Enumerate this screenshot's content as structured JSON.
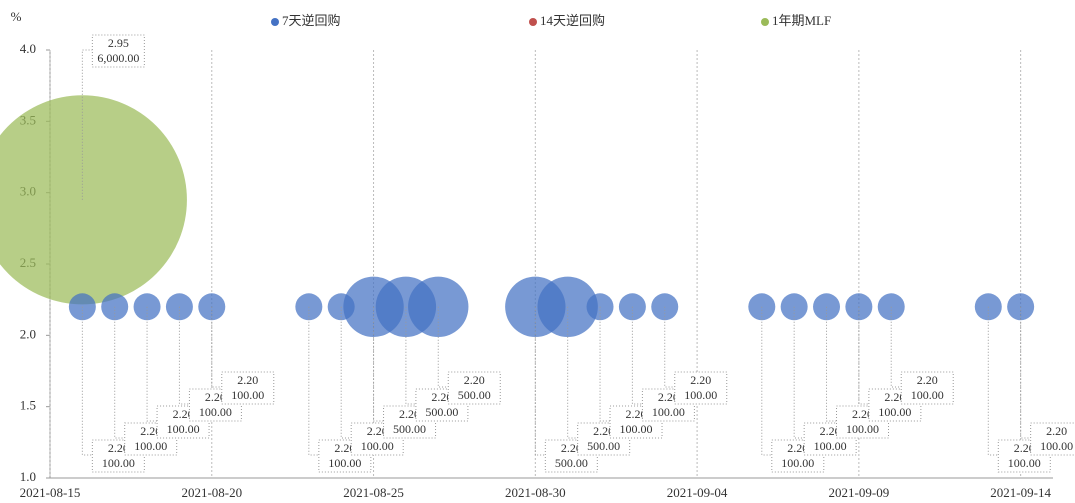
{
  "chart_data": {
    "type": "bubble",
    "y_label": "%",
    "xlim": [
      "2021-08-15",
      "2021-09-15"
    ],
    "xticks": [
      "2021-08-15",
      "2021-08-20",
      "2021-08-25",
      "2021-08-30",
      "2021-09-04",
      "2021-09-09",
      "2021-09-14"
    ],
    "ylim": [
      1,
      4
    ],
    "yticks": [
      {
        "value": 1,
        "label": "1.0"
      },
      {
        "value": 1.5,
        "label": "1.5"
      },
      {
        "value": 2,
        "label": "2.0"
      },
      {
        "value": 2.5,
        "label": "2.5"
      },
      {
        "value": 3,
        "label": "3.0"
      },
      {
        "value": 3.5,
        "label": "3.5"
      },
      {
        "value": 4,
        "label": "4.0"
      }
    ],
    "x_grid": true,
    "series": [
      {
        "name": "7天逆回购",
        "color": "#4472c4",
        "x": [
          "2021-08-16",
          "2021-08-17",
          "2021-08-18",
          "2021-08-19",
          "2021-08-20",
          "2021-08-23",
          "2021-08-24",
          "2021-08-25",
          "2021-08-26",
          "2021-08-27",
          "2021-08-30",
          "2021-08-31",
          "2021-09-01",
          "2021-09-02",
          "2021-09-03",
          "2021-09-06",
          "2021-09-07",
          "2021-09-08",
          "2021-09-09",
          "2021-09-10",
          "2021-09-13",
          "2021-09-14"
        ],
        "values": [
          2.2,
          2.2,
          2.2,
          2.2,
          2.2,
          2.2,
          2.2,
          2.2,
          2.2,
          2.2,
          2.2,
          2.2,
          2.2,
          2.2,
          2.2,
          2.2,
          2.2,
          2.2,
          2.2,
          2.2,
          2.2,
          2.2
        ],
        "value_labels": [
          "2.20",
          "2.20",
          "2.20",
          "2.20",
          "2.20",
          "2.20",
          "2.20",
          "2.20",
          "2.20",
          "2.20",
          "2.20",
          "2.20",
          "2.20",
          "2.20",
          "2.20",
          "2.20",
          "2.20",
          "2.20",
          "2.20",
          "2.20",
          "2.20",
          "2.20"
        ],
        "sizes": [
          100,
          100,
          100,
          100,
          100,
          100,
          100,
          500,
          500,
          500,
          500,
          500,
          100,
          100,
          100,
          100,
          100,
          100,
          100,
          100,
          100,
          100
        ],
        "size_labels": [
          "100.00",
          "100.00",
          "100.00",
          "100.00",
          "100.00",
          "100.00",
          "100.00",
          "500.00",
          "500.00",
          "500.00",
          "500.00",
          "500.00",
          "100.00",
          "100.00",
          "100.00",
          "100.00",
          "100.00",
          "100.00",
          "100.00",
          "100.00",
          "100.00",
          "100.00"
        ]
      },
      {
        "name": "14天逆回购",
        "color": "#c0504d",
        "x": [],
        "values": [],
        "value_labels": [],
        "sizes": [],
        "size_labels": []
      },
      {
        "name": "1年期MLF",
        "color": "#9bbb59",
        "x": [
          "2021-08-16"
        ],
        "values": [
          2.95
        ],
        "value_labels": [
          "2.95"
        ],
        "sizes": [
          6000
        ],
        "size_labels": [
          "6,000.00"
        ]
      }
    ]
  }
}
